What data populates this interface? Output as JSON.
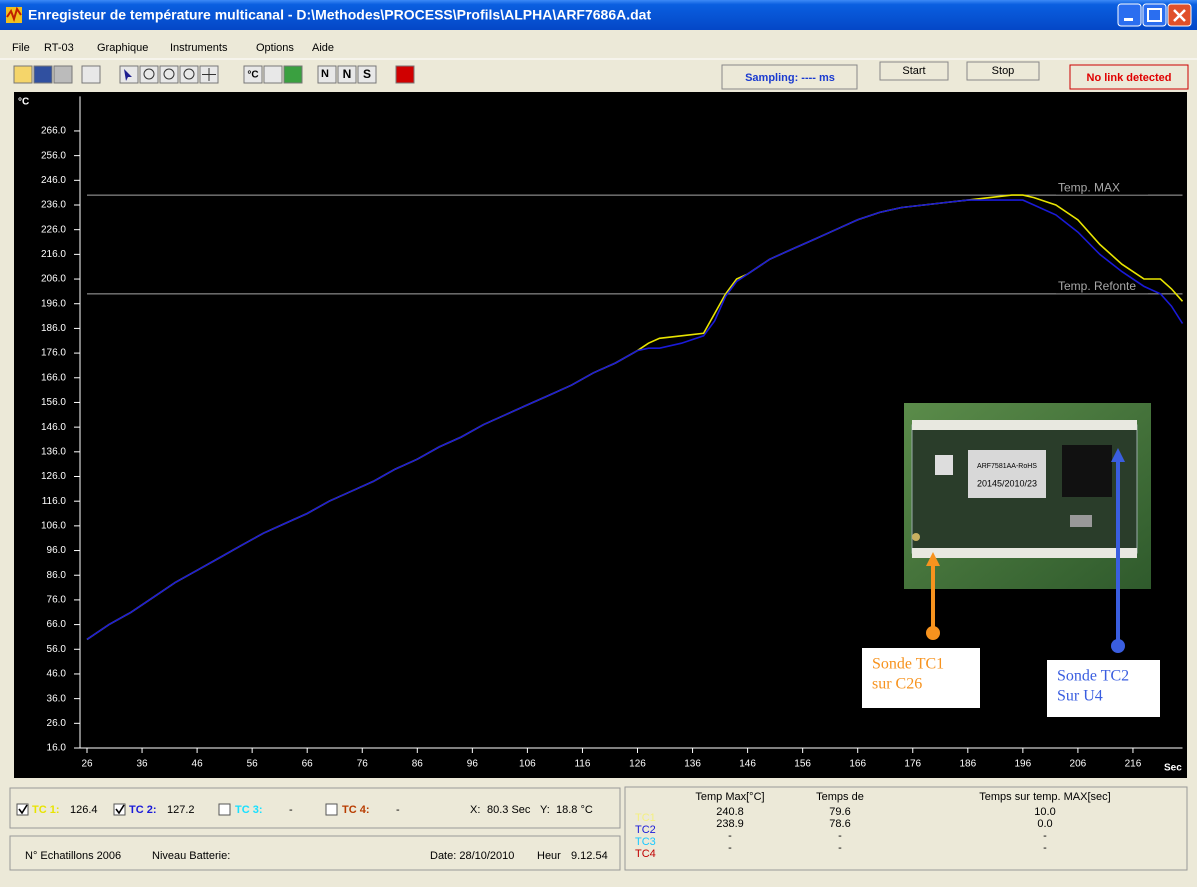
{
  "window": {
    "title": "Enregisteur de température multicanal - D:\\Methodes\\PROCESS\\Profils\\ALPHA\\ARF7686A.dat"
  },
  "menu": [
    "File",
    "RT-03",
    "Graphique",
    "Instruments",
    "Options",
    "Aide"
  ],
  "toolbar": {
    "text_buttons": [
      "°C",
      "N",
      "N",
      "S"
    ],
    "sampling": "Sampling: ---- ms",
    "start": "Start",
    "stop": "Stop",
    "link_status": "No link detected"
  },
  "chart_data": {
    "type": "line",
    "y_label": "°C",
    "x_label": "Sec",
    "background": "#000000",
    "grid": false,
    "x": [
      26,
      30,
      34,
      38,
      42,
      46,
      50,
      54,
      58,
      62,
      66,
      70,
      74,
      78,
      82,
      86,
      90,
      94,
      98,
      102,
      106,
      110,
      114,
      118,
      122,
      126,
      128,
      130,
      134,
      138,
      140,
      142,
      144,
      146,
      150,
      154,
      158,
      162,
      166,
      170,
      174,
      178,
      182,
      186,
      190,
      194,
      196,
      198,
      202,
      206,
      210,
      214,
      218,
      221,
      223,
      225
    ],
    "series": [
      {
        "name": "TC 1:",
        "color": "#e8e400",
        "values": [
          60,
          66,
          71,
          77,
          83,
          88,
          93,
          98,
          103,
          107,
          111,
          116,
          120,
          124,
          129,
          133,
          138,
          142,
          147,
          151,
          155,
          159,
          163,
          168,
          172,
          177,
          180,
          182,
          183,
          184,
          192,
          200,
          206,
          208,
          214,
          218,
          222,
          226,
          230,
          233,
          235,
          236,
          237,
          238,
          239,
          240,
          240,
          239,
          236,
          230,
          220,
          212,
          206,
          206,
          202,
          197
        ]
      },
      {
        "name": "TC 2:",
        "color": "#1a1ad8",
        "values": [
          60,
          66,
          71,
          77,
          83,
          88,
          93,
          98,
          103,
          107,
          111,
          116,
          120,
          124,
          129,
          133,
          138,
          142,
          147,
          151,
          155,
          159,
          163,
          168,
          172,
          177,
          178,
          178,
          180,
          183,
          189,
          199,
          205,
          208,
          214,
          218,
          222,
          226,
          230,
          233,
          235,
          236,
          237,
          238,
          238,
          238,
          238,
          236,
          232,
          225,
          216,
          209,
          203,
          200,
          195,
          188
        ]
      }
    ],
    "xlim": [
      26,
      225
    ],
    "ylim": [
      16,
      280
    ],
    "xticks": [
      26,
      36,
      46,
      56,
      66,
      76,
      86,
      96,
      106,
      116,
      126,
      136,
      146,
      156,
      166,
      176,
      186,
      196,
      206,
      216
    ],
    "yticks": [
      {
        "value": 16,
        "label": "16.0"
      },
      {
        "value": 26,
        "label": "26.0"
      },
      {
        "value": 36,
        "label": "36.0"
      },
      {
        "value": 46,
        "label": "46.0"
      },
      {
        "value": 56,
        "label": "56.0"
      },
      {
        "value": 66,
        "label": "66.0"
      },
      {
        "value": 76,
        "label": "76.0"
      },
      {
        "value": 86,
        "label": "86.0"
      },
      {
        "value": 96,
        "label": "96.0"
      },
      {
        "value": 106,
        "label": "106.0"
      },
      {
        "value": 116,
        "label": "116.0"
      },
      {
        "value": 126,
        "label": "126.0"
      },
      {
        "value": 136,
        "label": "136.0"
      },
      {
        "value": 146,
        "label": "146.0"
      },
      {
        "value": 156,
        "label": "156.0"
      },
      {
        "value": 166,
        "label": "166.0"
      },
      {
        "value": 176,
        "label": "176.0"
      },
      {
        "value": 186,
        "label": "186.0"
      },
      {
        "value": 196,
        "label": "196.0"
      },
      {
        "value": 206,
        "label": "206.0"
      },
      {
        "value": 216,
        "label": "216.0"
      },
      {
        "value": 226,
        "label": "226.0"
      },
      {
        "value": 236,
        "label": "236.0"
      },
      {
        "value": 246,
        "label": "246.0"
      },
      {
        "value": 256,
        "label": "256.0"
      },
      {
        "value": 266,
        "label": "266.0"
      }
    ],
    "reference_lines": [
      {
        "value": 240,
        "label": "Temp. MAX",
        "color": "#a8a8a8"
      },
      {
        "value": 200,
        "label": "Temp. Refonte",
        "color": "#a8a8a8"
      }
    ]
  },
  "inset": {
    "chip_label": "ARF7581AA-RoHS",
    "chip_code": "20145/2010/23",
    "annotations": [
      {
        "lines": [
          "Sonde TC1",
          "sur C26"
        ],
        "color": "#f7931e"
      },
      {
        "lines": [
          "Sonde TC2",
          "Sur U4"
        ],
        "color": "#3a5ee0"
      }
    ]
  },
  "readout": {
    "checked": [
      true,
      true,
      false,
      false
    ],
    "current": [
      126.4,
      127.2
    ],
    "off_channels": [
      {
        "name": "TC 3:",
        "color": "#19e0ff",
        "value": "-"
      },
      {
        "name": "TC 4:",
        "color": "#b83c00",
        "value": "-"
      }
    ],
    "x_label": "X:",
    "x_value": "80.3 Sec",
    "y_label": "Y:",
    "y_value": "18.8 °C"
  },
  "status": {
    "samples": "N° Echatillons 2006",
    "battery": "Niveau Batterie:",
    "date": "Date: 28/10/2010",
    "time_label": "Heur",
    "time": "9.12.54"
  },
  "stats_table": {
    "headers": [
      "Temp Max[°C]",
      "Temps de",
      "Temps sur temp. MAX[sec]"
    ],
    "rows": [
      {
        "name": "TC1",
        "color": "#f4f080",
        "cells": [
          "240.8",
          "79.6",
          "10.0"
        ]
      },
      {
        "name": "TC2",
        "color": "#1a1ad8",
        "cells": [
          "238.9",
          "78.6",
          "0.0"
        ]
      },
      {
        "name": "TC3",
        "color": "#19c8ff",
        "cells": [
          "-",
          "-",
          "-"
        ]
      },
      {
        "name": "TC4",
        "color": "#c00000",
        "cells": [
          "-",
          "-",
          "-"
        ]
      }
    ]
  }
}
